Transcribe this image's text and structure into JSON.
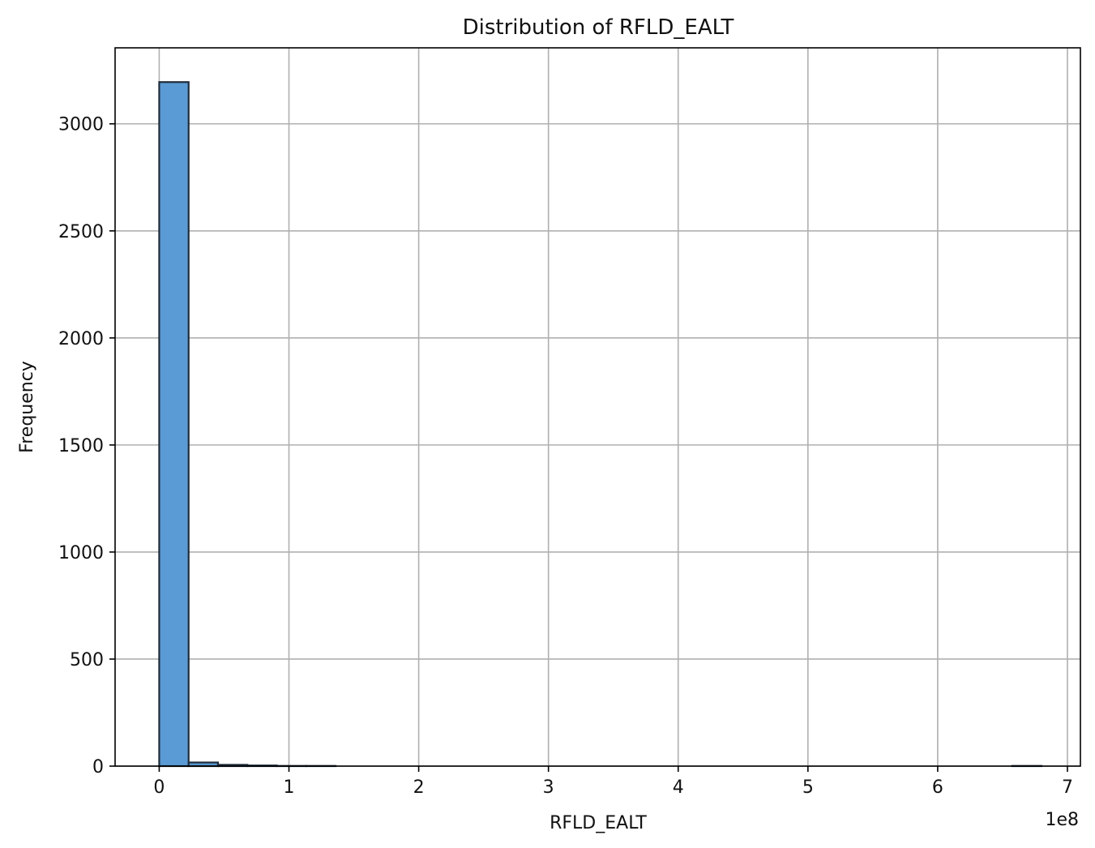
{
  "chart_data": {
    "type": "bar",
    "title": "Distribution of RFLD_EALT",
    "xlabel": "RFLD_EALT",
    "ylabel": "Frequency",
    "x_offset_text": "1e8",
    "x_ticks": [
      0,
      1,
      2,
      3,
      4,
      5,
      6,
      7
    ],
    "x_tick_labels": [
      "0",
      "1",
      "2",
      "3",
      "4",
      "5",
      "6",
      "7"
    ],
    "x_multiplier": 100000000,
    "y_ticks": [
      0,
      500,
      1000,
      1500,
      2000,
      2500,
      3000
    ],
    "y_tick_labels": [
      "0",
      "500",
      "1000",
      "1500",
      "2000",
      "2500",
      "3000"
    ],
    "xlim": [
      -34000000,
      710000000
    ],
    "ylim": [
      0,
      3355
    ],
    "grid": true,
    "bin_edges": [
      0,
      22666667,
      45333333,
      68000000,
      90666667,
      113333333,
      136000000,
      158666667,
      181333333,
      204000000,
      226666667,
      249333333,
      272000000,
      294666667,
      317333333,
      340000000,
      362666667,
      385333333,
      408000000,
      430666667,
      453333333,
      476000000,
      498666667,
      521333333,
      544000000,
      566666667,
      589333333,
      612000000,
      634666667,
      657333333,
      680000000
    ],
    "values": [
      3195,
      17,
      6,
      3,
      1,
      1,
      0,
      0,
      0,
      0,
      0,
      0,
      0,
      0,
      0,
      0,
      0,
      0,
      0,
      0,
      0,
      0,
      0,
      0,
      0,
      0,
      0,
      0,
      0,
      1
    ],
    "bar_color": "#5b9bd5",
    "edge_color": "#1f2d3a"
  }
}
